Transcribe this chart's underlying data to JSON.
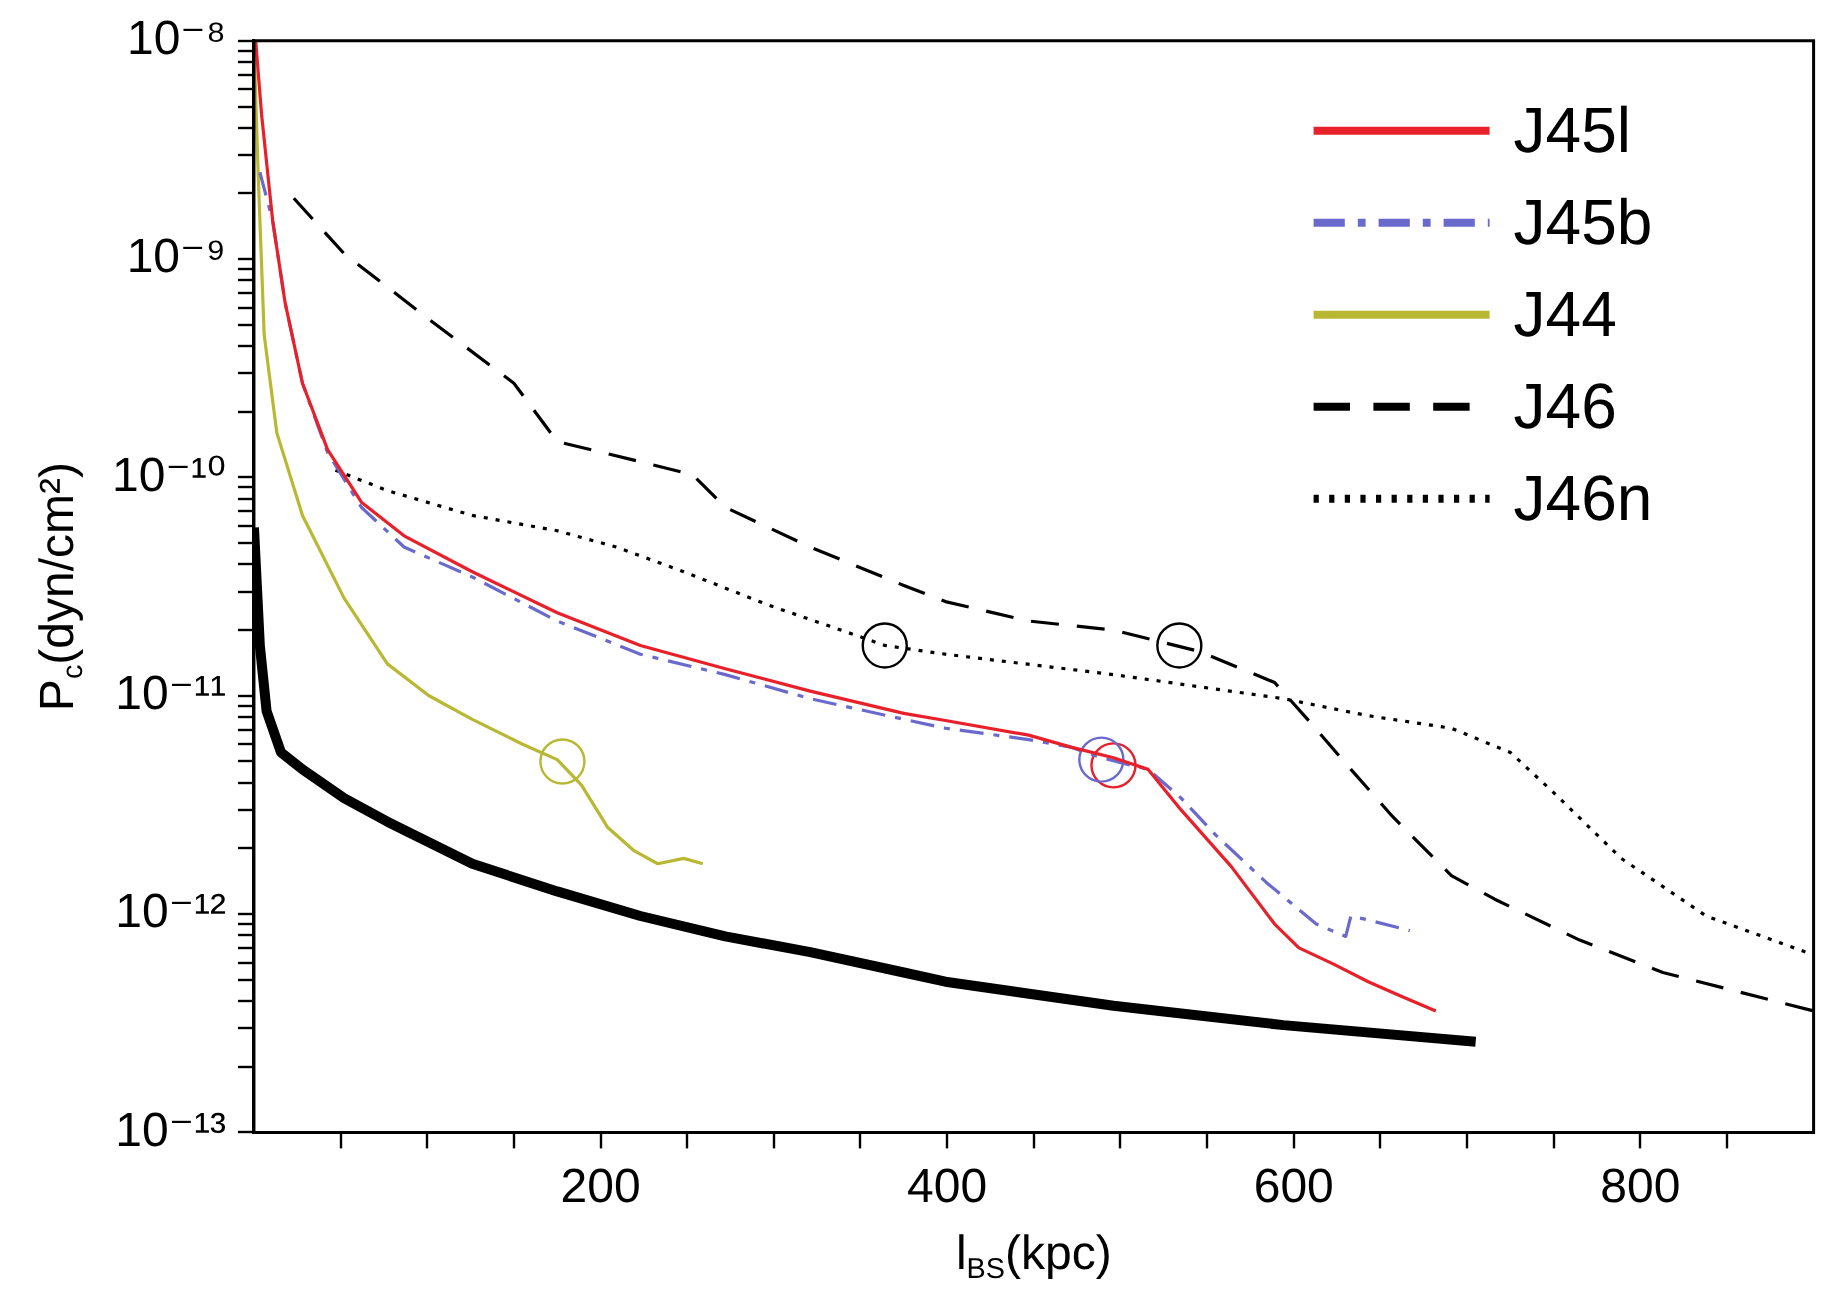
{
  "chart_data": {
    "type": "line",
    "xlabel": "l$_{BS}$(kpc)",
    "ylabel": "P$_{c}$(dyn/cm²)",
    "log": "y",
    "grid": false,
    "legend": "top right",
    "marker": "none",
    "xlim": [
      0,
      900
    ],
    "ylim": [
      1e-13,
      1e-08
    ],
    "xticks": [
      {
        "value": 50,
        "label": null
      },
      {
        "value": 100,
        "label": null
      },
      {
        "value": 150,
        "label": null
      },
      200,
      {
        "value": 250,
        "label": null
      },
      {
        "value": 300,
        "label": null
      },
      {
        "value": 350,
        "label": null
      },
      400,
      {
        "value": 450,
        "label": null
      },
      {
        "value": 500,
        "label": null
      },
      {
        "value": 550,
        "label": null
      },
      600,
      {
        "value": 650,
        "label": null
      },
      {
        "value": 700,
        "label": null
      },
      {
        "value": 750,
        "label": null
      },
      800,
      {
        "value": 850,
        "label": null
      }
    ],
    "yticks": [
      {
        "value": 1e-13,
        "label": "10⁻¹³"
      },
      {
        "value": 2e-13,
        "label": null
      },
      {
        "value": 3e-13,
        "label": null
      },
      {
        "value": 4e-13,
        "label": null
      },
      {
        "value": 5e-13,
        "label": null
      },
      {
        "value": 6e-13,
        "label": null
      },
      {
        "value": 7e-13,
        "label": null
      },
      {
        "value": 8e-13,
        "label": null
      },
      {
        "value": 9e-13,
        "label": null
      },
      {
        "value": 1e-12,
        "label": "10⁻¹²"
      },
      {
        "value": 2e-12,
        "label": null
      },
      {
        "value": 3e-12,
        "label": null
      },
      {
        "value": 4e-12,
        "label": null
      },
      {
        "value": 5e-12,
        "label": null
      },
      {
        "value": 6e-12,
        "label": null
      },
      {
        "value": 7e-12,
        "label": null
      },
      {
        "value": 8e-12,
        "label": null
      },
      {
        "value": 9e-12,
        "label": null
      },
      {
        "value": 1e-11,
        "label": "10⁻¹¹"
      },
      {
        "value": 2e-11,
        "label": null
      },
      {
        "value": 3e-11,
        "label": null
      },
      {
        "value": 4e-11,
        "label": null
      },
      {
        "value": 5e-11,
        "label": null
      },
      {
        "value": 6e-11,
        "label": null
      },
      {
        "value": 7e-11,
        "label": null
      },
      {
        "value": 8e-11,
        "label": null
      },
      {
        "value": 9e-11,
        "label": null
      },
      {
        "value": 1e-10,
        "label": "10⁻¹⁰"
      },
      {
        "value": 2e-10,
        "label": null
      },
      {
        "value": 3e-10,
        "label": null
      },
      {
        "value": 4e-10,
        "label": null
      },
      {
        "value": 5e-10,
        "label": null
      },
      {
        "value": 6e-10,
        "label": null
      },
      {
        "value": 7e-10,
        "label": null
      },
      {
        "value": 8e-10,
        "label": null
      },
      {
        "value": 9e-10,
        "label": null
      },
      {
        "value": 1e-09,
        "label": "10⁻⁹"
      },
      {
        "value": 2e-09,
        "label": null
      },
      {
        "value": 3e-09,
        "label": null
      },
      {
        "value": 4e-09,
        "label": null
      },
      {
        "value": 5e-09,
        "label": null
      },
      {
        "value": 6e-09,
        "label": null
      },
      {
        "value": 7e-09,
        "label": null
      },
      {
        "value": 8e-09,
        "label": null
      },
      {
        "value": 9e-09,
        "label": null
      },
      {
        "value": 1e-08,
        "label": "10⁻⁸"
      }
    ],
    "series": [
      {
        "name": "J45l",
        "color": "#e8202a",
        "line_style": "solid",
        "x": [
          1,
          4.4,
          10.8,
          18,
          28,
          42.5,
          62,
          86.6,
          126,
          175,
          223,
          272,
          321,
          375,
          399,
          447,
          472,
          496,
          516,
          535,
          564,
          589,
          603,
          623,
          643,
          662,
          682
        ],
        "values": [
          1e-08,
          4.6e-09,
          1.5e-09,
          6.3e-10,
          2.7e-10,
          1.34e-10,
          7.7e-11,
          5.4e-11,
          3.7e-11,
          2.4e-11,
          1.7e-11,
          1.33e-11,
          1.05e-11,
          8.3e-12,
          7.7e-12,
          6.6e-12,
          5.8e-12,
          5.2e-12,
          4.6e-12,
          3e-12,
          1.65e-12,
          9e-13,
          7e-13,
          5.9e-13,
          4.9e-13,
          4.2e-13,
          3.6e-13
        ]
      },
      {
        "name": "J45b",
        "color": "#6a6acd",
        "line_style": "dashdot",
        "x": [
          3.4,
          10.8,
          18,
          28,
          42.5,
          62,
          86.6,
          126,
          175,
          223,
          272,
          321,
          375,
          399,
          447,
          472,
          489,
          516,
          535,
          555,
          584,
          613,
          630,
          633,
          643,
          667
        ],
        "values": [
          2.5e-09,
          1.5e-09,
          6.3e-10,
          2.7e-10,
          1.3e-10,
          7.3e-11,
          4.8e-11,
          3.5e-11,
          2.2e-11,
          1.55e-11,
          1.25e-11,
          9.7e-12,
          7.8e-12,
          7.1e-12,
          6.3e-12,
          5.8e-12,
          5.2e-12,
          4.6e-12,
          3.4e-12,
          2.3e-12,
          1.4e-12,
          9e-13,
          7.9e-13,
          9.8e-13,
          9.4e-13,
          8.4e-13
        ]
      },
      {
        "name": "J44",
        "color": "#b8b833",
        "line_style": "solid",
        "x": [
          0,
          2.4,
          5.9,
          13.2,
          28,
          52,
          77,
          101,
          126,
          155,
          175,
          189,
          204,
          219,
          233,
          248,
          259
        ],
        "values": [
          1e-08,
          2.5e-09,
          4.5e-10,
          1.6e-10,
          6.7e-11,
          2.8e-11,
          1.4e-11,
          1e-11,
          7.8e-12,
          6e-12,
          5.1e-12,
          3.9e-12,
          2.5e-12,
          1.96e-12,
          1.7e-12,
          1.8e-12,
          1.7e-12
        ]
      },
      {
        "name": "J46",
        "color": "#000000",
        "line_style": "dashed",
        "x": [
          23,
          52,
          101,
          150,
          175,
          223,
          253,
          272,
          321,
          375,
          399,
          447,
          496,
          545,
          589,
          608,
          633,
          657,
          691,
          716,
          765,
          813,
          900
        ],
        "values": [
          1.9e-09,
          1.06e-09,
          5.3e-10,
          2.7e-10,
          1.46e-10,
          1.18e-10,
          1.03e-10,
          7.3e-11,
          4.8e-11,
          3.2e-11,
          2.7e-11,
          2.2e-11,
          2e-11,
          1.6e-11,
          1.15e-11,
          7.8e-12,
          4.6e-12,
          2.8e-12,
          1.5e-12,
          1.17e-12,
          7.6e-13,
          5.4e-13,
          3.6e-13
        ]
      },
      {
        "name": "J46n",
        "color": "#000000",
        "line_style": "dotted",
        "x": [
          47,
          77,
          126,
          175,
          209,
          248,
          297,
          351,
          364,
          399,
          496,
          594,
          643,
          691,
          725,
          750,
          789,
          838,
          900
        ],
        "values": [
          1.08e-10,
          8.7e-11,
          6.7e-11,
          5.7e-11,
          4.8e-11,
          3.7e-11,
          2.6e-11,
          1.85e-11,
          1.7e-11,
          1.55e-11,
          1.25e-11,
          9.7e-12,
          8.1e-12,
          7.1e-12,
          5.5e-12,
          3.6e-12,
          1.8e-12,
          9.8e-13,
          6.5e-13
        ]
      },
      {
        "color": "#000000",
        "line_style": "solid",
        "x": [
          0,
          3.4,
          7.3,
          15.6,
          28,
          52,
          77,
          126,
          175,
          223,
          272,
          321,
          375,
          399,
          496,
          594,
          705
        ],
        "values": [
          5.9e-11,
          1.7e-11,
          8.5e-12,
          5.5e-12,
          4.6e-12,
          3.4e-12,
          2.65e-12,
          1.7e-12,
          1.27e-12,
          9.8e-13,
          7.9e-13,
          6.7e-13,
          5.4e-13,
          4.9e-13,
          3.8e-13,
          3.1e-13,
          2.6e-13
        ]
      },
      {
        "type": "scatter",
        "color": "#b8b833",
        "marker": "circle",
        "x": [
          178
        ],
        "values": [
          5e-12
        ]
      },
      {
        "type": "scatter",
        "color": "#6a6acd",
        "marker": "circle",
        "x": [
          489
        ],
        "values": [
          5.1e-12
        ]
      },
      {
        "type": "scatter",
        "color": "#e8202a",
        "marker": "circle",
        "x": [
          496
        ],
        "values": [
          4.8e-12
        ]
      },
      {
        "type": "scatter",
        "color": "#000000",
        "marker": "circle",
        "x": [
          364,
          534
        ],
        "values": [
          1.7e-11,
          1.7e-11
        ]
      }
    ]
  }
}
